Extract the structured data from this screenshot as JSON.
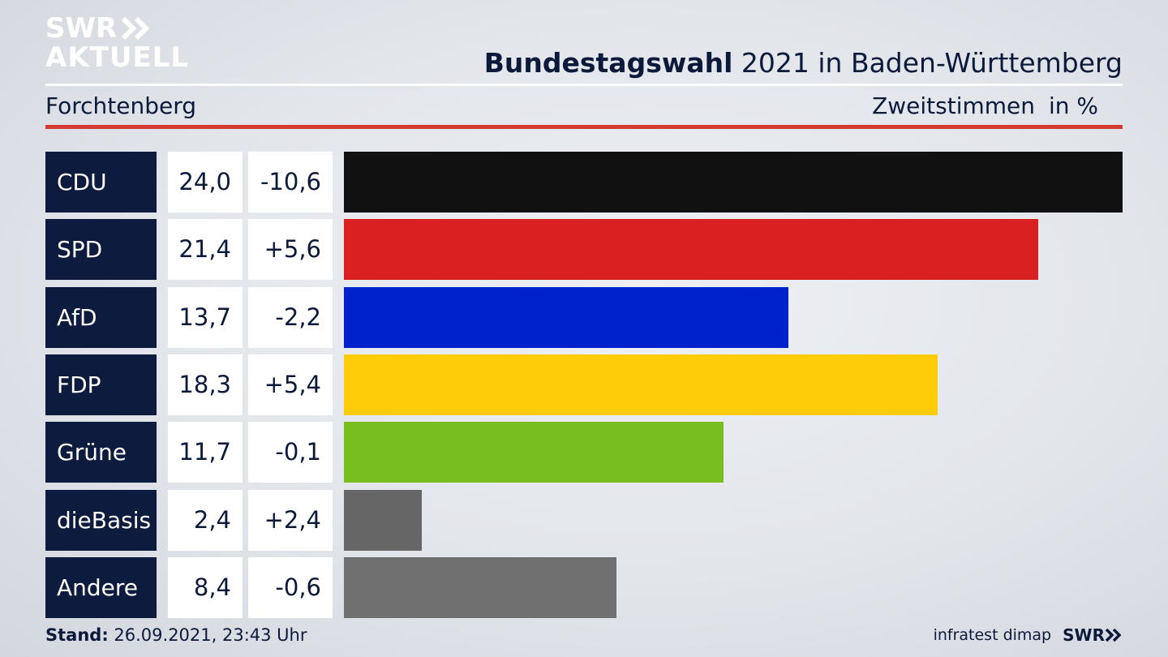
{
  "logo": {
    "line1": "SWR",
    "line2": "AKTUELL"
  },
  "header": {
    "title_bold": "Bundestagswahl",
    "title_rest": " 2021 in Baden-Württemberg",
    "place": "Forchtenberg",
    "measure": "Zweitstimmen",
    "unit": "in %"
  },
  "chart_data": {
    "type": "bar",
    "orientation": "horizontal",
    "categories": [
      "CDU",
      "SPD",
      "AfD",
      "FDP",
      "Grüne",
      "dieBasis",
      "Andere"
    ],
    "values": [
      24.0,
      21.4,
      13.7,
      18.3,
      11.7,
      2.4,
      8.4
    ],
    "value_labels": [
      "24,0",
      "21,4",
      "13,7",
      "18,3",
      "11,7",
      "2,4",
      "8,4"
    ],
    "diff_labels": [
      "-10,6",
      "+5,6",
      "-2,2",
      "+5,4",
      "-0,1",
      "+2,4",
      "-0,6"
    ],
    "colors": [
      "#111111",
      "#d92121",
      "#0022cc",
      "#ffcc0a",
      "#78be1e",
      "#666666",
      "#707070"
    ],
    "xlim": [
      0,
      24.0
    ]
  },
  "footer": {
    "stand_label": "Stand:",
    "stand_value": " 26.09.2021, 23:43 Uhr",
    "source": "infratest dimap",
    "brand": "SWR"
  }
}
